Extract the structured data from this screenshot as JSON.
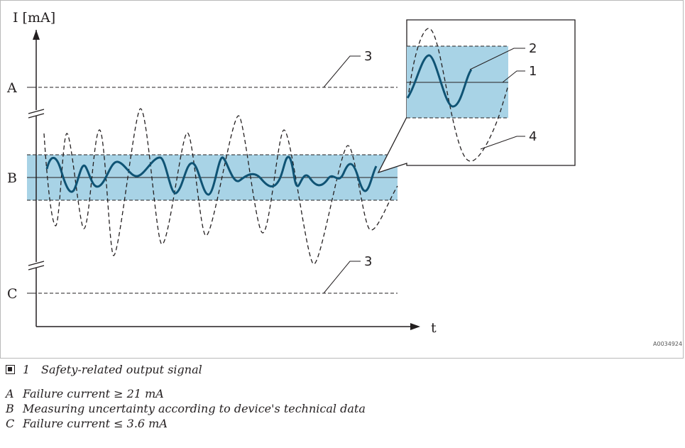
{
  "figure": {
    "y_axis_label": "I [mA]",
    "x_axis_label": "t",
    "level_labels": [
      "A",
      "B",
      "C"
    ],
    "callouts": [
      "1",
      "2",
      "3",
      "3",
      "4"
    ],
    "image_code": "A0034924",
    "colors": {
      "band_fill": "#a8d3e6",
      "signal": "#0f5374",
      "lines": "#231f20"
    }
  },
  "caption": {
    "figure_number": "1",
    "figure_title": "Safety-related output signal",
    "legend": [
      {
        "key": "A",
        "text": "Failure current ≥ 21 mA"
      },
      {
        "key": "B",
        "text": "Measuring uncertainty according to device's technical data"
      },
      {
        "key": "C",
        "text": "Failure current ≤ 3.6 mA"
      }
    ]
  }
}
